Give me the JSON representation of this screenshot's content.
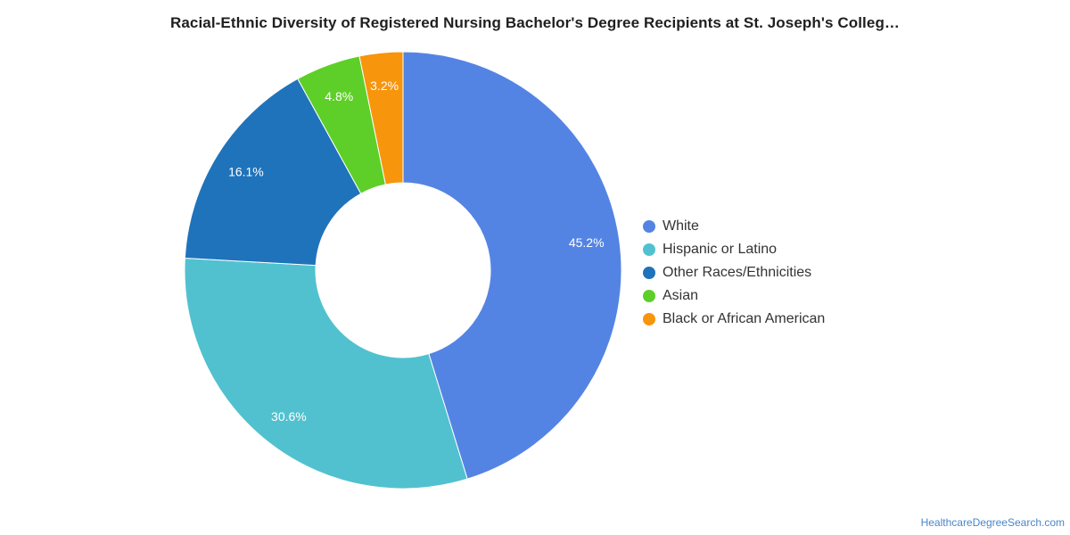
{
  "chart_data": {
    "type": "pie",
    "title": "Racial-Ethnic Diversity of Registered Nursing Bachelor's Degree Recipients at St. Joseph's Colleg…",
    "donut": true,
    "legend_position": "right",
    "slices": [
      {
        "label": "White",
        "value": 45.2,
        "value_label": "45.2%",
        "color": "#5484e3"
      },
      {
        "label": "Hispanic or Latino",
        "value": 30.6,
        "value_label": "30.6%",
        "color": "#51c1cf"
      },
      {
        "label": "Other Races/Ethnicities",
        "value": 16.1,
        "value_label": "16.1%",
        "color": "#1f73bb"
      },
      {
        "label": "Asian",
        "value": 4.8,
        "value_label": "4.8%",
        "color": "#5ecf28"
      },
      {
        "label": "Black or African American",
        "value": 3.2,
        "value_label": "3.2%",
        "color": "#f7950d"
      }
    ]
  },
  "source": {
    "text": "HealthcareDegreeSearch.com"
  }
}
